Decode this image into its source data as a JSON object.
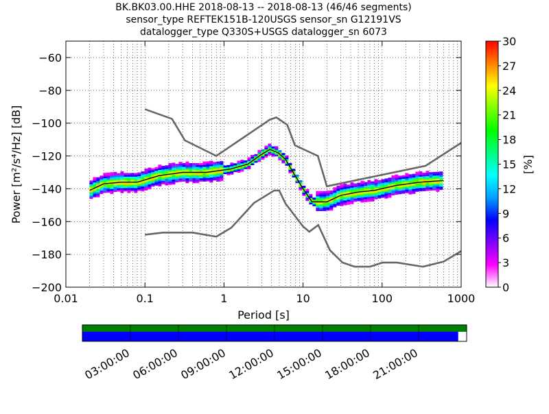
{
  "chart_data": {
    "type": "heatmap",
    "title_lines": [
      "BK.BK03.00.HHE   2018-08-13 -- 2018-08-13  (46/46 segments)",
      "sensor_type REFTEK151B-120USGS sensor_sn G12191VS",
      "datalogger_type Q330S+USGS datalogger_sn 6073"
    ],
    "xlabel": "Period [s]",
    "ylabel": "Power [m²/s⁴/Hz] [dB]",
    "xscale": "log",
    "xlim": [
      0.01,
      1000
    ],
    "ylim": [
      -200,
      -50
    ],
    "x_ticks": [
      {
        "value": 0.01,
        "label": "0.01"
      },
      {
        "value": 0.1,
        "label": "0.1"
      },
      {
        "value": 1,
        "label": "1"
      },
      {
        "value": 10,
        "label": "10"
      },
      {
        "value": 100,
        "label": "100"
      },
      {
        "value": 1000,
        "label": "1000"
      }
    ],
    "y_ticks": [
      {
        "value": -60,
        "label": "−60"
      },
      {
        "value": -80,
        "label": "−80"
      },
      {
        "value": -100,
        "label": "−100"
      },
      {
        "value": -120,
        "label": "−120"
      },
      {
        "value": -140,
        "label": "−140"
      },
      {
        "value": -160,
        "label": "−160"
      },
      {
        "value": -180,
        "label": "−180"
      },
      {
        "value": -200,
        "label": "−200"
      }
    ],
    "grid": "dotted",
    "colorbar": {
      "label": "[%]",
      "range": [
        0,
        30
      ],
      "ticks": [
        "0",
        "3",
        "6",
        "9",
        "12",
        "15",
        "18",
        "21",
        "24",
        "27",
        "30"
      ],
      "colors": [
        "#ffffff",
        "#ff00ff",
        "#8000ff",
        "#0000ff",
        "#00a0ff",
        "#00ffff",
        "#00ff80",
        "#00ff00",
        "#80ff00",
        "#ffff00",
        "#ff8000",
        "#ff0000"
      ]
    },
    "nhnm": [
      [
        0.1,
        -91.5
      ],
      [
        0.22,
        -97.4
      ],
      [
        0.32,
        -110.5
      ],
      [
        0.8,
        -120.0
      ],
      [
        3.8,
        -97.9
      ],
      [
        4.6,
        -96.5
      ],
      [
        6.3,
        -101.0
      ],
      [
        7.9,
        -113.5
      ],
      [
        15.4,
        -120.0
      ],
      [
        20,
        -138.5
      ],
      [
        354.8,
        -126.0
      ],
      [
        1000,
        -112.0
      ]
    ],
    "nlnm": [
      [
        0.1,
        -168.0
      ],
      [
        0.17,
        -166.7
      ],
      [
        0.4,
        -166.7
      ],
      [
        0.8,
        -169.2
      ],
      [
        1.24,
        -163.7
      ],
      [
        2.4,
        -148.6
      ],
      [
        4.3,
        -141.1
      ],
      [
        5,
        -141.1
      ],
      [
        6,
        -149.0
      ],
      [
        10,
        -163.0
      ],
      [
        12,
        -166.2
      ],
      [
        15.6,
        -162.1
      ],
      [
        21.9,
        -177.5
      ],
      [
        31.6,
        -185.0
      ],
      [
        45,
        -187.5
      ],
      [
        70,
        -187.5
      ],
      [
        101,
        -185.0
      ],
      [
        154,
        -185.0
      ],
      [
        328,
        -187.5
      ],
      [
        600,
        -184.4
      ],
      [
        1000,
        -178.0
      ]
    ],
    "median": [
      [
        0.02,
        -141
      ],
      [
        0.03,
        -137
      ],
      [
        0.05,
        -136
      ],
      [
        0.08,
        -136
      ],
      [
        0.15,
        -132
      ],
      [
        0.3,
        -130
      ],
      [
        0.6,
        -130
      ],
      [
        1.2,
        -128
      ],
      [
        2,
        -125
      ],
      [
        3,
        -119
      ],
      [
        3.8,
        -116
      ],
      [
        4.8,
        -118
      ],
      [
        6,
        -122
      ],
      [
        7.5,
        -130
      ],
      [
        10,
        -140
      ],
      [
        13,
        -148
      ],
      [
        20,
        -148
      ],
      [
        30,
        -144
      ],
      [
        50,
        -142
      ],
      [
        80,
        -141
      ],
      [
        150,
        -138
      ],
      [
        300,
        -136
      ],
      [
        600,
        -135
      ]
    ],
    "timeline": {
      "tick_labels": [
        "03:00:00",
        "06:00:00",
        "09:00:00",
        "12:00:00",
        "15:00:00",
        "18:00:00",
        "21:00:00"
      ],
      "hours": [
        3,
        6,
        9,
        12,
        15,
        18,
        21
      ],
      "span_hours": 24,
      "top_bar_color": "#008000",
      "bottom_bar_color": "#0000ff",
      "bottom_bar_coverage": 0.978
    }
  }
}
